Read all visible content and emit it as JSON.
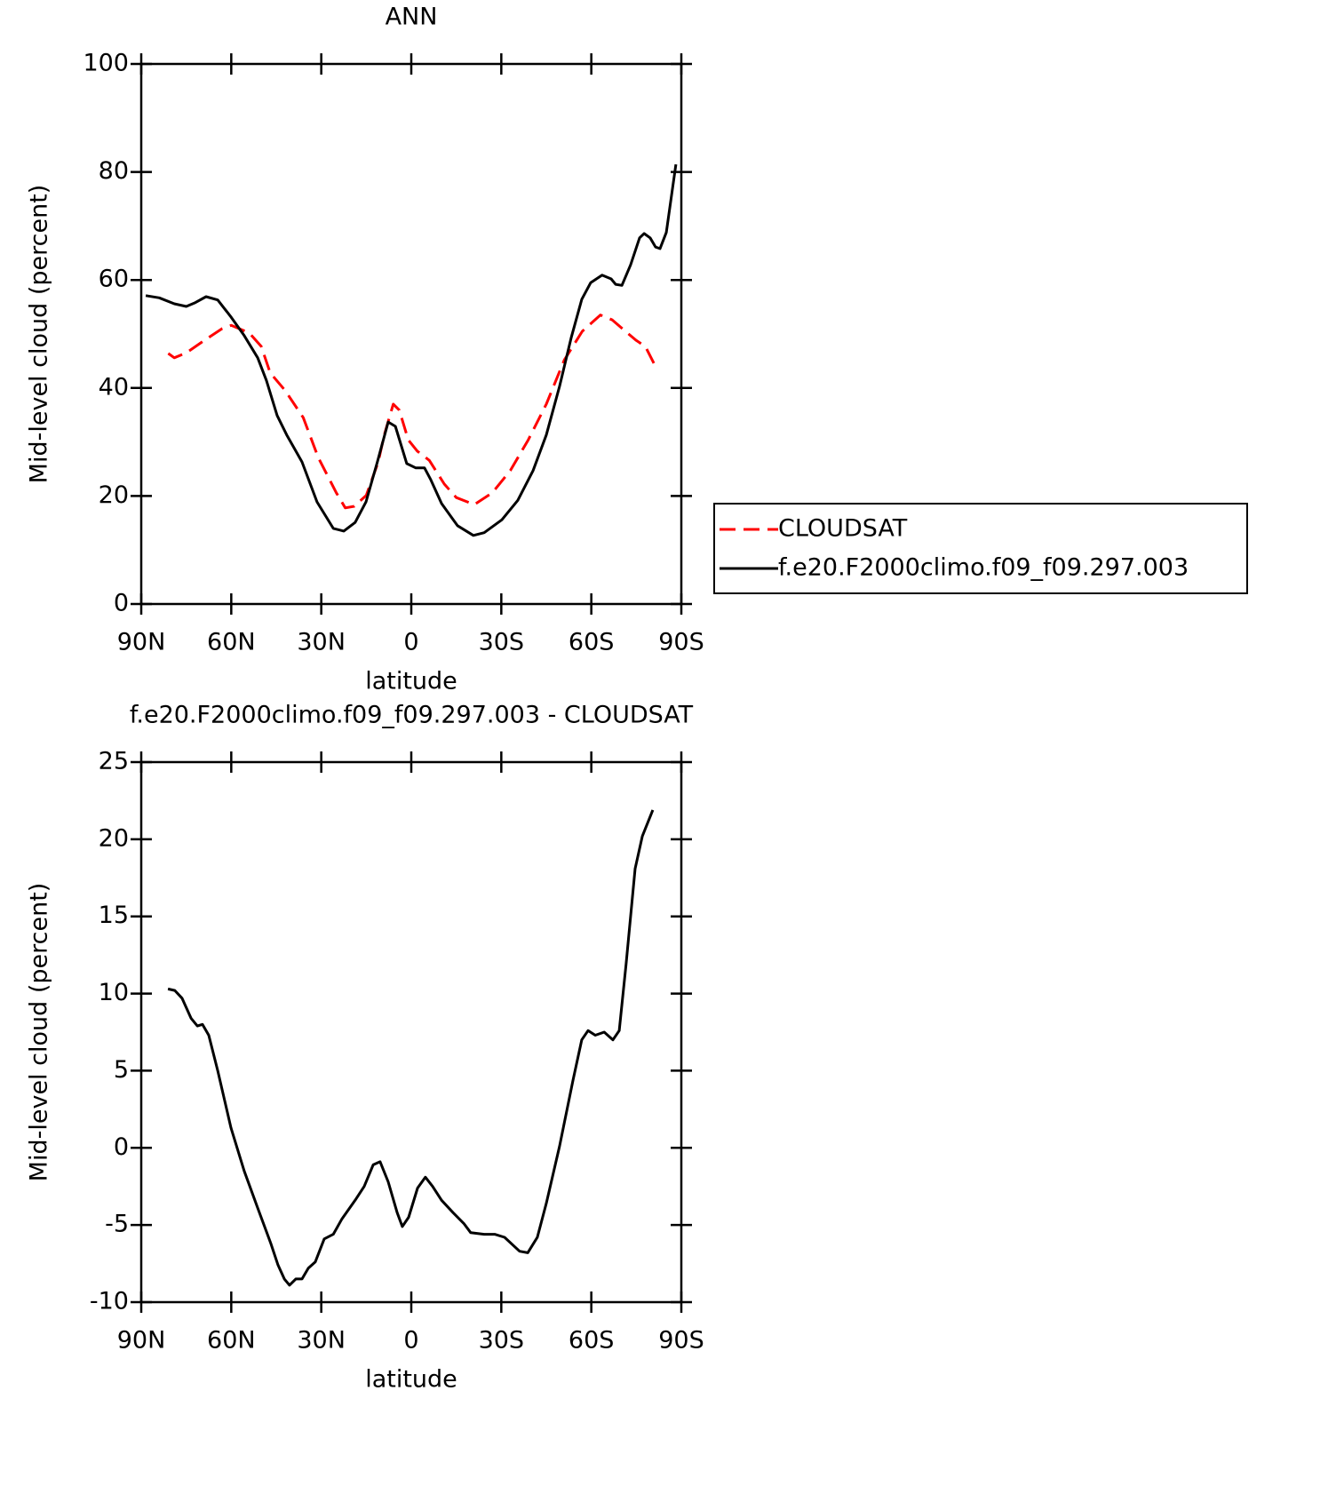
{
  "chart_data": [
    {
      "type": "line",
      "title": "ANN",
      "xlabel": "latitude",
      "ylabel": "Mid-level cloud (percent)",
      "xlim": [
        90,
        -90
      ],
      "xticks": [
        {
          "value": 90,
          "label": "90N"
        },
        {
          "value": 60,
          "label": "60N"
        },
        {
          "value": 30,
          "label": "30N"
        },
        0,
        {
          "value": -30,
          "label": "30S"
        },
        {
          "value": -60,
          "label": "60S"
        },
        {
          "value": -90,
          "label": "90S"
        }
      ],
      "ylim": [
        0,
        100
      ],
      "yticks": [
        0,
        20,
        40,
        60,
        80,
        100
      ],
      "legend": "right",
      "series": [
        {
          "name": "CLOUDSAT",
          "color": "#ff0000",
          "dash": "dashed",
          "x": [
            81,
            79,
            75,
            69,
            63,
            60,
            54,
            50,
            47,
            42,
            36,
            31,
            25,
            22,
            19,
            15,
            11,
            9,
            6,
            4,
            1,
            -2,
            -6,
            -11,
            -15,
            -21,
            -27,
            -33,
            -39,
            -45,
            -51,
            -57,
            -63,
            -67,
            -72,
            -75,
            -78,
            -81
          ],
          "values": [
            46.4,
            45.6,
            46.5,
            48.8,
            51.0,
            51.6,
            50.2,
            47.7,
            42.8,
            39.5,
            34.5,
            27.1,
            20.6,
            17.8,
            18.1,
            20.1,
            26.3,
            31.3,
            37.0,
            35.9,
            30.4,
            28.3,
            26.6,
            22.2,
            19.7,
            18.4,
            20.6,
            24.7,
            30.4,
            37.0,
            45.2,
            50.5,
            53.5,
            52.6,
            50.2,
            48.8,
            47.7,
            44.4
          ]
        },
        {
          "name": "f.e20.F2000climo.f09_f09.297.003",
          "color": "#000000",
          "dash": "solid",
          "x": [
            88.5,
            84,
            79,
            75,
            72,
            68.4,
            64.5,
            60,
            55.7,
            51.2,
            48.3,
            44.7,
            41.5,
            36.4,
            31.4,
            26,
            22.5,
            18.7,
            15.1,
            11.3,
            7.7,
            5.3,
            1.5,
            -1.5,
            -4.4,
            -6.5,
            -10.1,
            -15.4,
            -20.7,
            -24.3,
            -30.2,
            -35.5,
            -40.6,
            -45,
            -49.4,
            -53.3,
            -56.8,
            -59.8,
            -63.6,
            -66.6,
            -68.1,
            -70.2,
            -73.1,
            -76.1,
            -77.6,
            -79.6,
            -81.4,
            -82.9,
            -85,
            -88.2
          ],
          "values": [
            57.1,
            56.7,
            55.6,
            55.1,
            55.8,
            56.9,
            56.3,
            53.1,
            49.7,
            45.6,
            41.4,
            34.9,
            31.3,
            26.3,
            18.9,
            14.0,
            13.5,
            15.1,
            18.9,
            26.3,
            33.7,
            32.9,
            26.0,
            25.2,
            25.2,
            23.0,
            18.6,
            14.5,
            12.7,
            13.2,
            15.6,
            19.2,
            24.7,
            31.3,
            40.3,
            49.3,
            56.4,
            59.5,
            60.9,
            60.2,
            59.2,
            59.0,
            62.8,
            67.8,
            68.6,
            67.8,
            66.1,
            65.8,
            68.8,
            81.4
          ]
        }
      ]
    },
    {
      "type": "line",
      "title": "f.e20.F2000climo.f09_f09.297.003 - CLOUDSAT",
      "xlabel": "latitude",
      "ylabel": "Mid-level cloud (percent)",
      "xlim": [
        90,
        -90
      ],
      "xticks": [
        {
          "value": 90,
          "label": "90N"
        },
        {
          "value": 60,
          "label": "60N"
        },
        {
          "value": 30,
          "label": "30N"
        },
        0,
        {
          "value": -30,
          "label": "30S"
        },
        {
          "value": -60,
          "label": "60S"
        },
        {
          "value": -90,
          "label": "90S"
        }
      ],
      "ylim": [
        -10,
        25
      ],
      "yticks": [
        -10,
        -5,
        0,
        5,
        10,
        15,
        20,
        25
      ],
      "series": [
        {
          "color": "#000000",
          "dash": "solid",
          "x": [
            81.1,
            78.8,
            76.4,
            73.4,
            71.3,
            69.6,
            67.5,
            64.5,
            60.1,
            55.7,
            51.2,
            46.8,
            44.4,
            42.3,
            40.6,
            38.5,
            36.4,
            34.3,
            32,
            29,
            26,
            23.1,
            18.7,
            15.7,
            12.7,
            10.4,
            7.7,
            4.7,
            3,
            0.9,
            -2.1,
            -4.7,
            -7.1,
            -10.1,
            -13.9,
            -17.5,
            -19.8,
            -24.3,
            -27.8,
            -31.1,
            -36.1,
            -38.8,
            -42,
            -45,
            -49.4,
            -53.9,
            -56.8,
            -58.9,
            -61.3,
            -64.3,
            -67.2,
            -69.3,
            -71.6,
            -74.6,
            -77,
            -80.5
          ],
          "values": [
            10.3,
            10.2,
            9.7,
            8.4,
            7.9,
            8.0,
            7.3,
            5.0,
            1.3,
            -1.5,
            -3.9,
            -6.2,
            -7.6,
            -8.5,
            -8.9,
            -8.5,
            -8.5,
            -7.8,
            -7.4,
            -5.9,
            -5.6,
            -4.6,
            -3.4,
            -2.5,
            -1.1,
            -0.9,
            -2.2,
            -4.2,
            -5.1,
            -4.5,
            -2.6,
            -1.9,
            -2.5,
            -3.4,
            -4.2,
            -4.9,
            -5.5,
            -5.6,
            -5.6,
            -5.8,
            -6.7,
            -6.8,
            -5.8,
            -3.6,
            0.1,
            4.4,
            7.0,
            7.6,
            7.3,
            7.5,
            7.0,
            7.6,
            11.9,
            18.1,
            20.2,
            21.9
          ]
        }
      ]
    }
  ]
}
